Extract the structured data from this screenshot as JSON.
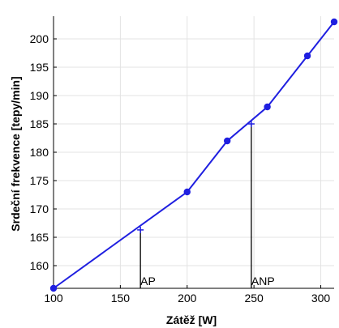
{
  "chart_data": {
    "type": "line",
    "xlabel": "Zátěž [W]",
    "ylabel": "Srdeční frekvence [tepy/min]",
    "xlim": [
      100,
      310
    ],
    "ylim": [
      156,
      204
    ],
    "grid": true,
    "xticks": [
      100,
      150,
      200,
      250,
      300
    ],
    "yticks": [
      160,
      165,
      170,
      175,
      180,
      185,
      190,
      195,
      200
    ],
    "series": [
      {
        "color": "#1f1fe0",
        "x": [
          100,
          200,
          230,
          260,
          290,
          310
        ],
        "y": [
          156,
          173,
          182,
          188,
          197,
          203
        ]
      }
    ],
    "threshold_points": [
      {
        "label": "AP",
        "x": 162,
        "y": 166.3
      },
      {
        "label": "ANP",
        "x": 245,
        "y": 185
      }
    ]
  }
}
